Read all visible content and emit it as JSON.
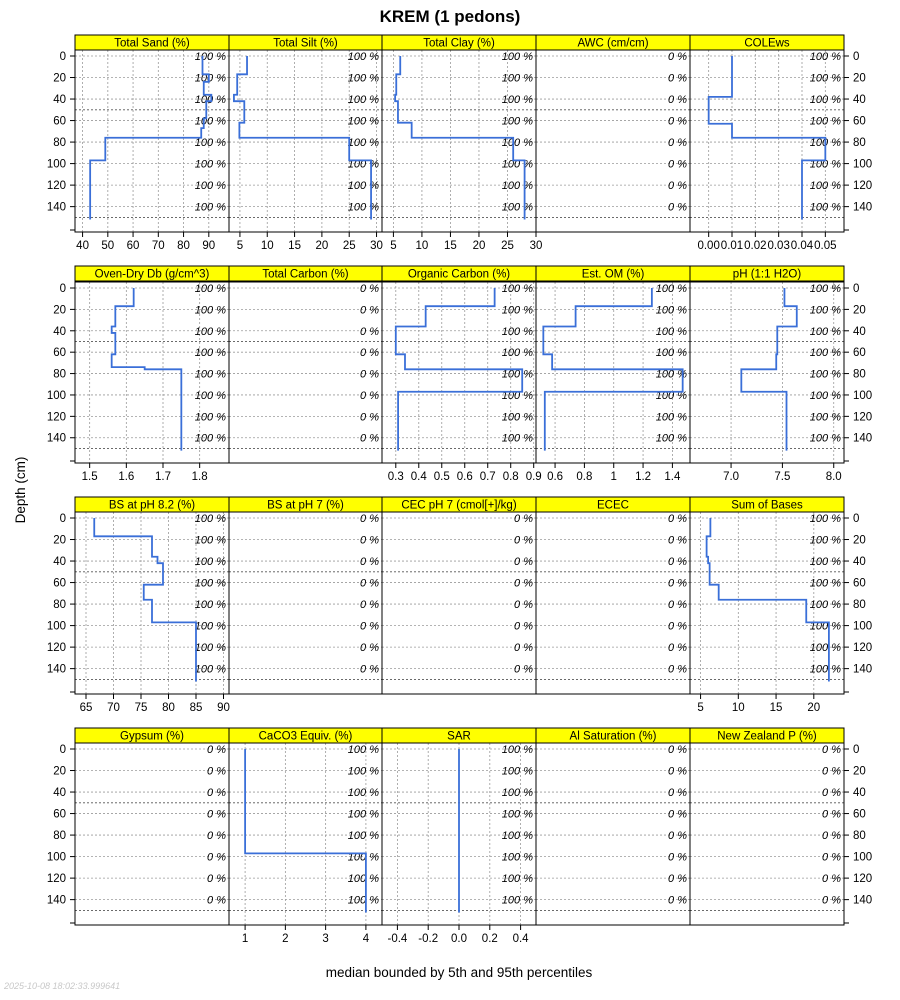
{
  "chart_data": {
    "type": "line",
    "title": "KREM (1 pedons)",
    "xlabel": "median bounded by 5th and 95th percentiles",
    "ylabel": "Depth (cm)",
    "timestamp": "2025-10-08 18:02:33.999641",
    "ylim": [
      0,
      158
    ],
    "depth_ticks": [
      0,
      20,
      40,
      60,
      80,
      100,
      120,
      140
    ],
    "pct_depths": [
      0,
      20,
      40,
      60,
      80,
      100,
      120,
      140
    ],
    "colors": {
      "strip": "#ffff00",
      "line": "#3a6fd8",
      "grid": "#9a9a9a",
      "frame": "#000000",
      "text": "#000000"
    },
    "panels": [
      {
        "name": "Total Sand (%)",
        "xlim": [
          37,
          98
        ],
        "xticks": [
          40,
          50,
          60,
          70,
          80,
          90
        ],
        "steps": [
          [
            0,
            17,
            87.5
          ],
          [
            17,
            24,
            90
          ],
          [
            24,
            36,
            88
          ],
          [
            36,
            42,
            91
          ],
          [
            42,
            58,
            89
          ],
          [
            58,
            67,
            88
          ],
          [
            67,
            76,
            87
          ],
          [
            76,
            97,
            49
          ],
          [
            97,
            152,
            43
          ]
        ],
        "pct": "100 %"
      },
      {
        "name": "Total Silt (%)",
        "xlim": [
          3,
          31
        ],
        "xticks": [
          5,
          10,
          15,
          20,
          25,
          30
        ],
        "steps": [
          [
            0,
            17,
            6.3
          ],
          [
            17,
            36,
            4.5
          ],
          [
            36,
            42,
            3.9
          ],
          [
            42,
            62,
            5.8
          ],
          [
            62,
            76,
            4.9
          ],
          [
            76,
            97,
            25
          ],
          [
            97,
            152,
            29
          ]
        ],
        "pct": "100 %"
      },
      {
        "name": "Total Clay (%)",
        "xlim": [
          3,
          30
        ],
        "xticks": [
          5,
          10,
          15,
          20,
          25,
          30
        ],
        "steps": [
          [
            0,
            17,
            6.2
          ],
          [
            17,
            36,
            5.5
          ],
          [
            36,
            42,
            5.3
          ],
          [
            42,
            62,
            5.8
          ],
          [
            62,
            76,
            8.2
          ],
          [
            76,
            97,
            26
          ],
          [
            97,
            152,
            28
          ]
        ],
        "pct": "100 %"
      },
      {
        "name": "AWC (cm/cm)",
        "xlim": [
          0,
          1
        ],
        "xticks": [],
        "steps": [],
        "pct": "0 %"
      },
      {
        "name": "COLEws",
        "xlim": [
          -0.008,
          0.058
        ],
        "xticks": [
          0.0,
          0.01,
          0.02,
          0.03,
          0.04,
          0.05
        ],
        "tick_labels": [
          "0.00",
          "0.01",
          "0.02",
          "0.03",
          "0.04",
          "0.05"
        ],
        "steps": [
          [
            0,
            38,
            0.01
          ],
          [
            38,
            63,
            0.0
          ],
          [
            63,
            76,
            0.01
          ],
          [
            76,
            97,
            0.05
          ],
          [
            97,
            152,
            0.04
          ]
        ],
        "pct": "100 %"
      },
      {
        "name": "Oven-Dry Db (g/cm^3)",
        "xlim": [
          1.46,
          1.88
        ],
        "xticks": [
          1.5,
          1.6,
          1.7,
          1.8
        ],
        "tick_labels": [
          "1.5",
          "1.6",
          "1.7",
          "1.8"
        ],
        "steps": [
          [
            0,
            17,
            1.62
          ],
          [
            17,
            36,
            1.57
          ],
          [
            36,
            42,
            1.56
          ],
          [
            42,
            62,
            1.57
          ],
          [
            62,
            74,
            1.56
          ],
          [
            74,
            76,
            1.65
          ],
          [
            76,
            152,
            1.75
          ]
        ],
        "pct": "100 %"
      },
      {
        "name": "Total Carbon (%)",
        "xlim": [
          0,
          1
        ],
        "xticks": [],
        "steps": [],
        "pct": "0 %"
      },
      {
        "name": "Organic Carbon (%)",
        "xlim": [
          0.24,
          0.91
        ],
        "xticks": [
          0.3,
          0.4,
          0.5,
          0.6,
          0.7,
          0.8,
          0.9
        ],
        "tick_labels": [
          "0.3",
          "0.4",
          "0.5",
          "0.6",
          "0.7",
          "0.8",
          "0.9"
        ],
        "steps": [
          [
            0,
            17,
            0.73
          ],
          [
            17,
            36,
            0.43
          ],
          [
            36,
            62,
            0.3
          ],
          [
            62,
            76,
            0.34
          ],
          [
            76,
            97,
            0.85
          ],
          [
            97,
            152,
            0.31
          ]
        ],
        "pct": "100 %"
      },
      {
        "name": "Est. OM (%)",
        "xlim": [
          0.47,
          1.52
        ],
        "xticks": [
          0.6,
          0.8,
          1.0,
          1.2,
          1.4
        ],
        "tick_labels": [
          "0.6",
          "0.8",
          "1",
          "1.2",
          "1.4"
        ],
        "steps": [
          [
            0,
            17,
            1.26
          ],
          [
            17,
            36,
            0.74
          ],
          [
            36,
            62,
            0.52
          ],
          [
            62,
            76,
            0.58
          ],
          [
            76,
            97,
            1.47
          ],
          [
            97,
            152,
            0.53
          ]
        ],
        "pct": "100 %"
      },
      {
        "name": "pH (1:1 H2O)",
        "xlim": [
          6.6,
          8.1
        ],
        "xticks": [
          7.0,
          7.5,
          8.0
        ],
        "tick_labels": [
          "7.0",
          "7.5",
          "8.0"
        ],
        "steps": [
          [
            0,
            17,
            7.52
          ],
          [
            17,
            36,
            7.64
          ],
          [
            36,
            62,
            7.45
          ],
          [
            62,
            76,
            7.44
          ],
          [
            76,
            97,
            7.1
          ],
          [
            97,
            152,
            7.54
          ]
        ],
        "pct": "100 %"
      },
      {
        "name": "BS at pH 8.2 (%)",
        "xlim": [
          63,
          91
        ],
        "xticks": [
          65,
          70,
          75,
          80,
          85,
          90
        ],
        "steps": [
          [
            0,
            17,
            66.5
          ],
          [
            17,
            36,
            77
          ],
          [
            36,
            42,
            78
          ],
          [
            42,
            62,
            79
          ],
          [
            62,
            76,
            75.5
          ],
          [
            76,
            97,
            77
          ],
          [
            97,
            152,
            85
          ]
        ],
        "pct": "100 %"
      },
      {
        "name": "BS at pH 7 (%)",
        "xlim": [
          0,
          1
        ],
        "xticks": [],
        "steps": [],
        "pct": "0 %"
      },
      {
        "name": "CEC pH 7 (cmol[+]/kg)",
        "xlim": [
          0,
          1
        ],
        "xticks": [],
        "steps": [],
        "pct": "0 %"
      },
      {
        "name": "ECEC",
        "xlim": [
          0,
          1
        ],
        "xticks": [],
        "steps": [],
        "pct": "0 %"
      },
      {
        "name": "Sum of Bases",
        "xlim": [
          3.6,
          24
        ],
        "xticks": [
          5,
          10,
          15,
          20
        ],
        "steps": [
          [
            0,
            17,
            6.3
          ],
          [
            17,
            36,
            5.8
          ],
          [
            36,
            42,
            6.0
          ],
          [
            42,
            62,
            6.2
          ],
          [
            62,
            76,
            7.4
          ],
          [
            76,
            97,
            19
          ],
          [
            97,
            152,
            22
          ]
        ],
        "pct": "100 %"
      },
      {
        "name": "Gypsum (%)",
        "xlim": [
          0,
          1
        ],
        "xticks": [],
        "steps": [],
        "pct": "0 %"
      },
      {
        "name": "CaCO3 Equiv. (%)",
        "xlim": [
          0.6,
          4.4
        ],
        "xticks": [
          1,
          2,
          3,
          4
        ],
        "steps": [
          [
            0,
            97,
            1
          ],
          [
            97,
            152,
            4
          ]
        ],
        "pct": "100 %"
      },
      {
        "name": "SAR",
        "xlim": [
          -0.5,
          0.5
        ],
        "xticks": [
          -0.4,
          -0.2,
          0.0,
          0.2,
          0.4
        ],
        "tick_labels": [
          "-0.4",
          "-0.2",
          "0.0",
          "0.2",
          "0.4"
        ],
        "steps": [
          [
            0,
            152,
            0.0
          ]
        ],
        "pct": "100 %"
      },
      {
        "name": "Al Saturation (%)",
        "xlim": [
          0,
          1
        ],
        "xticks": [],
        "steps": [],
        "pct": "0 %"
      },
      {
        "name": "New Zealand P (%)",
        "xlim": [
          0,
          1
        ],
        "xticks": [],
        "steps": [],
        "pct": "0 %"
      }
    ]
  }
}
